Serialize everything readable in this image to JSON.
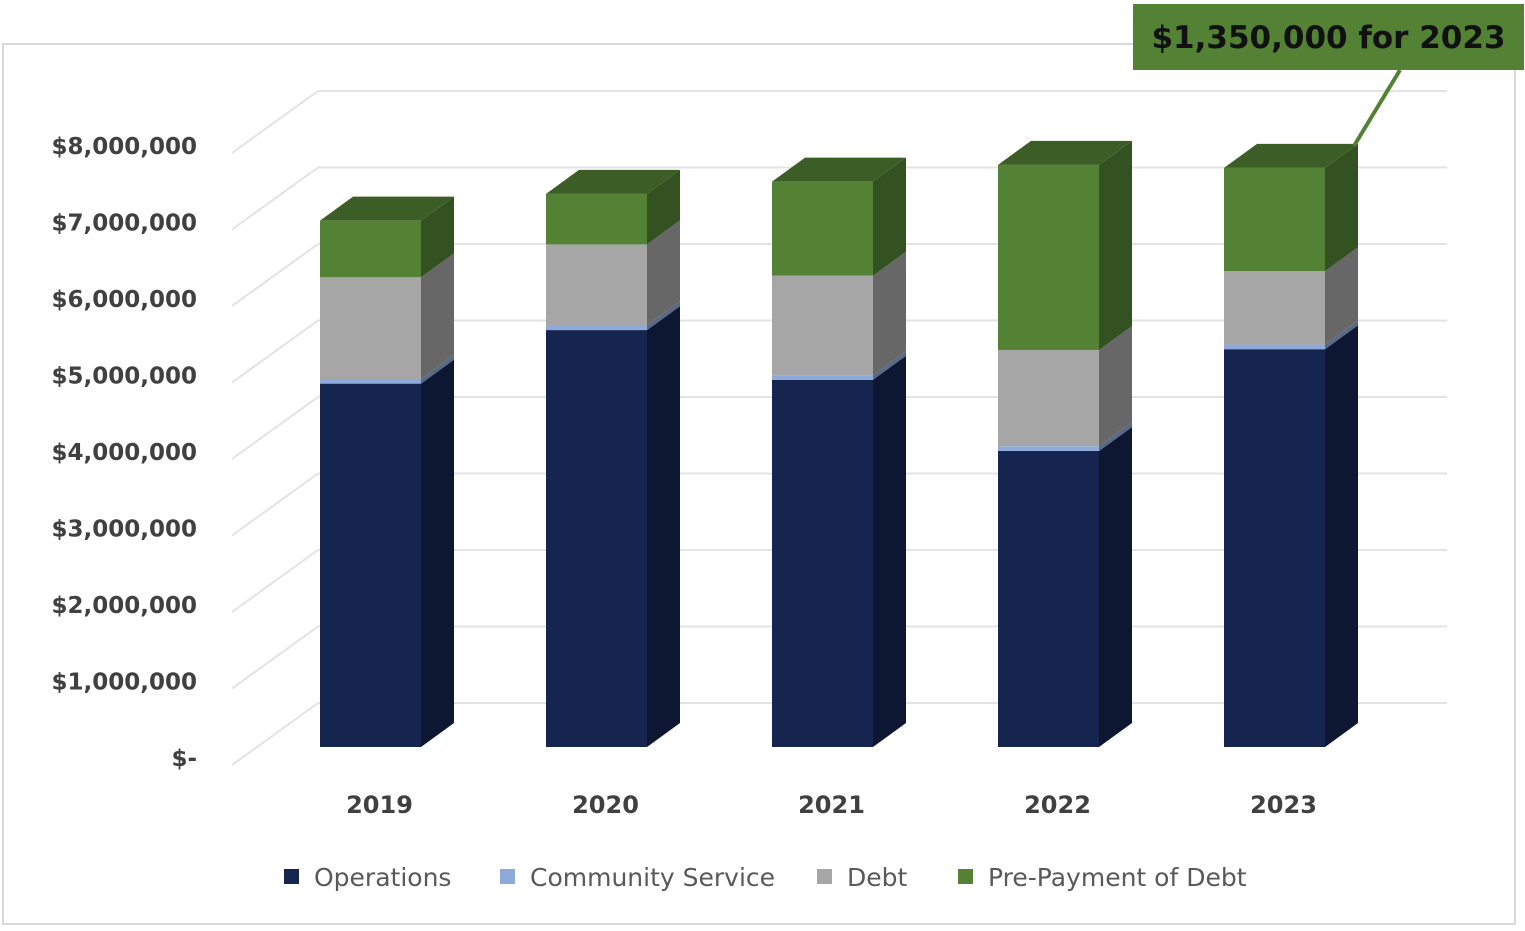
{
  "chart_data": {
    "type": "bar",
    "stacked": true,
    "three_d": true,
    "categories": [
      "2019",
      "2020",
      "2021",
      "2022",
      "2023"
    ],
    "series": [
      {
        "name": "Operations",
        "color": "#15254f",
        "values": [
          4750000,
          5450000,
          4800000,
          3870000,
          5200000
        ]
      },
      {
        "name": "Community Service",
        "color": "#8eaadb",
        "values": [
          60000,
          60000,
          60000,
          60000,
          60000
        ]
      },
      {
        "name": "Debt",
        "color": "#a6a6a6",
        "values": [
          1330000,
          1060000,
          1300000,
          1260000,
          960000
        ]
      },
      {
        "name": "Pre-Payment of Debt",
        "color": "#548235",
        "values": [
          740000,
          660000,
          1230000,
          2420000,
          1350000
        ]
      }
    ],
    "y_ticks": [
      "$-",
      "$1,000,000",
      "$2,000,000",
      "$3,000,000",
      "$4,000,000",
      "$5,000,000",
      "$6,000,000",
      "$7,000,000",
      "$8,000,000"
    ],
    "ylim": [
      0,
      8000000
    ],
    "grid": true,
    "legend_position": "bottom",
    "annotation": {
      "text": "$1,350,000 for 2023",
      "target": "2023",
      "color": "#548235"
    }
  }
}
